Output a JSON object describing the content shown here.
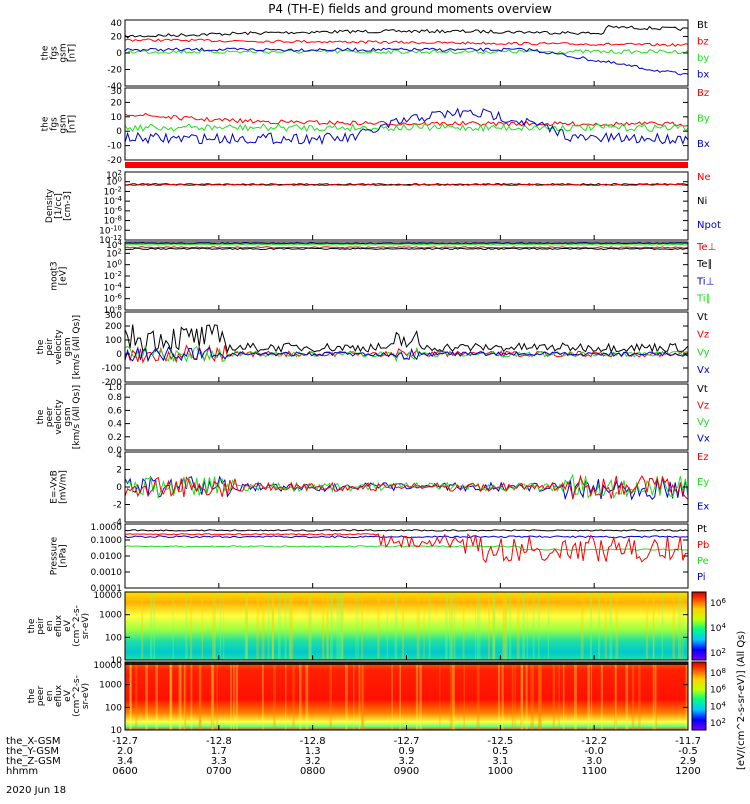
{
  "title": "P4 (TH-E) fields and ground moments overview",
  "date_label": "2020 Jun 18",
  "colors": {
    "black": "#000000",
    "red": "#ff0000",
    "green": "#22dd22",
    "blue": "#0000cc"
  },
  "panels": [
    {
      "id": "fgs_gsm",
      "ylabel": [
        "the",
        "fgs",
        "gsm",
        "[nT]"
      ],
      "ticks": [
        "40",
        "20",
        "0",
        "-20",
        "-40"
      ],
      "legend": [
        {
          "t": "Bt",
          "c": "black"
        },
        {
          "t": "bz",
          "c": "red"
        },
        {
          "t": "by",
          "c": "green"
        },
        {
          "t": "bx",
          "c": "blue"
        }
      ]
    },
    {
      "id": "fgs_gsm2",
      "ylabel": [
        "the",
        "fgs",
        "gsm",
        "[nT]"
      ],
      "ticks": [
        "30",
        "20",
        "10",
        "0",
        "-10",
        "-20"
      ],
      "legend": [
        {
          "t": "Bz",
          "c": "red"
        },
        {
          "t": "By",
          "c": "green"
        },
        {
          "t": "Bx",
          "c": "blue"
        }
      ]
    },
    {
      "id": "density",
      "ylabel": [
        "Density",
        "[1/cc]",
        "[cm-3]"
      ],
      "ticks": [
        "10^2",
        "10^0",
        "10^-2",
        "10^-4",
        "10^-6",
        "10^-8",
        "10^-10",
        "10^-12"
      ],
      "legend": [
        {
          "t": "Ne",
          "c": "red"
        },
        {
          "t": "Ni",
          "c": "black"
        },
        {
          "t": "Npot",
          "c": "blue"
        }
      ]
    },
    {
      "id": "temp",
      "ylabel": [
        "moqt3",
        "[eV]"
      ],
      "ticks": [
        "10^4",
        "10^2",
        "10^0",
        "10^-2",
        "10^-4",
        "10^-6",
        "10^-8"
      ],
      "legend": [
        {
          "t": "Te⊥",
          "c": "red"
        },
        {
          "t": "Te∥",
          "c": "black"
        },
        {
          "t": "Ti⊥",
          "c": "blue"
        },
        {
          "t": "Ti∥",
          "c": "green"
        }
      ]
    },
    {
      "id": "peir_vel",
      "ylabel": [
        "the",
        "peir",
        "velocity",
        "gsm",
        "[km/s (All Qs)]"
      ],
      "ticks": [
        "300",
        "200",
        "100",
        "0",
        "-100",
        "-200"
      ],
      "legend": [
        {
          "t": "Vt",
          "c": "black"
        },
        {
          "t": "Vz",
          "c": "red"
        },
        {
          "t": "Vy",
          "c": "green"
        },
        {
          "t": "Vx",
          "c": "blue"
        }
      ]
    },
    {
      "id": "peer_vel",
      "ylabel": [
        "the",
        "peer",
        "velocity",
        "gsm",
        "[km/s (All Qs)]"
      ],
      "ticks": [
        "1.0",
        "0.8",
        "0.6",
        "0.4",
        "0.2",
        "0.0"
      ],
      "legend": [
        {
          "t": "Vt",
          "c": "black"
        },
        {
          "t": "Vz",
          "c": "red"
        },
        {
          "t": "Vy",
          "c": "green"
        },
        {
          "t": "Vx",
          "c": "blue"
        }
      ]
    },
    {
      "id": "efield",
      "ylabel": [
        "E=-VxB",
        "[mV/m]"
      ],
      "ticks": [
        "4",
        "2",
        "0",
        "-2",
        "-4"
      ],
      "legend": [
        {
          "t": "Ez",
          "c": "red"
        },
        {
          "t": "Ey",
          "c": "green"
        },
        {
          "t": "Ex",
          "c": "blue"
        }
      ]
    },
    {
      "id": "pressure",
      "ylabel": [
        "Pressure",
        "[nPa]"
      ],
      "ticks": [
        "1.0000",
        "0.1000",
        "0.0100",
        "0.0010",
        "0.0001"
      ],
      "legend": [
        {
          "t": "Pt",
          "c": "black"
        },
        {
          "t": "Pb",
          "c": "red"
        },
        {
          "t": "Pe",
          "c": "green"
        },
        {
          "t": "Pi",
          "c": "blue"
        }
      ]
    },
    {
      "id": "peir_spec",
      "ylabel": [
        "the",
        "peir",
        "en",
        "eflux",
        "eV",
        "(cm^2-s-",
        "sr-eV)"
      ],
      "ticks": [
        "10000",
        "1000",
        "100",
        "10"
      ]
    },
    {
      "id": "peer_spec",
      "ylabel": [
        "the",
        "peer",
        "en",
        "eflux",
        "eV",
        "(cm^2-s-",
        "sr-eV)"
      ],
      "ticks": [
        "10000",
        "1000",
        "100",
        "10"
      ]
    }
  ],
  "colorbar": {
    "ticks1": [
      "10^6",
      "10^4",
      "10^2"
    ],
    "ticks2": [
      "10^8",
      "10^6",
      "10^4",
      "10^2"
    ],
    "label": "[eV/(cm^2-s-sr-eV)] (All Qs)"
  },
  "x_axis": {
    "row_labels": [
      "the_X-GSM",
      "the_Y-GSM",
      "the_Z-GSM",
      "hhmm"
    ],
    "columns": [
      [
        "-12.7",
        "2.0",
        "3.4",
        "0600"
      ],
      [
        "-12.8",
        "1.7",
        "3.3",
        "0700"
      ],
      [
        "-12.8",
        "1.3",
        "3.2",
        "0800"
      ],
      [
        "-12.7",
        "0.9",
        "3.2",
        "0900"
      ],
      [
        "-12.5",
        "0.5",
        "3.1",
        "1000"
      ],
      [
        "-12.2",
        "-0.0",
        "3.0",
        "1100"
      ],
      [
        "-11.7",
        "-0.5",
        "2.9",
        "1200"
      ]
    ]
  },
  "chart_data": {
    "type": "line",
    "title": "P4 (TH-E) fields and ground moments overview",
    "x_time_range": [
      "0600",
      "1200"
    ],
    "panels": [
      {
        "name": "fgs gsm (nT)",
        "ylim": [
          -40,
          40
        ],
        "series": [
          {
            "name": "Bt",
            "start": 25,
            "end": 30
          },
          {
            "name": "bz",
            "start": 20,
            "end": 15
          },
          {
            "name": "by",
            "start": 5,
            "end": 0
          },
          {
            "name": "bx",
            "start": 5,
            "end": -30
          }
        ]
      },
      {
        "name": "fgs gsm (nT)",
        "ylim": [
          -20,
          30
        ],
        "series": [
          {
            "name": "Bz",
            "start": 5,
            "end": 0
          },
          {
            "name": "By",
            "start": 0,
            "end": 0
          },
          {
            "name": "Bx",
            "start": -10,
            "end": -10
          }
        ]
      },
      {
        "name": "Density (cm-3)",
        "ylim": [
          "1e-12",
          "1e2"
        ],
        "scale": "log",
        "series": [
          {
            "name": "Ne",
            "value": 0.5
          },
          {
            "name": "Ni",
            "value": 0.4
          }
        ]
      },
      {
        "name": "moqt3 (eV)",
        "ylim": [
          "1e-8",
          "1e4"
        ],
        "scale": "log",
        "series": [
          {
            "name": "Te⊥",
            "value": 300
          },
          {
            "name": "Te∥",
            "value": 150
          },
          {
            "name": "Ti⊥",
            "value": 1500
          },
          {
            "name": "Ti∥",
            "value": 1200
          }
        ]
      },
      {
        "name": "peir velocity (km/s)",
        "ylim": [
          -200,
          300
        ],
        "series": [
          {
            "name": "Vt",
            "typical": 50,
            "max": 200
          },
          {
            "name": "Vz",
            "typical": 0
          },
          {
            "name": "Vy",
            "typical": 0
          },
          {
            "name": "Vx",
            "typical": 0
          }
        ]
      },
      {
        "name": "E=-VxB (mV/m)",
        "ylim": [
          -4,
          4
        ],
        "series": [
          {
            "name": "Ez",
            "typical": 0
          },
          {
            "name": "Ey",
            "typical": 0
          },
          {
            "name": "Ex",
            "typical": 0
          }
        ]
      },
      {
        "name": "Pressure (nPa)",
        "ylim": [
          0.0001,
          1
        ],
        "scale": "log",
        "series": [
          {
            "name": "Pt",
            "value": 0.5
          },
          {
            "name": "Pb",
            "start": 0.3,
            "end": 0.02
          },
          {
            "name": "Pe",
            "value": 0.08
          },
          {
            "name": "Pi",
            "value": 0.25
          }
        ]
      }
    ]
  }
}
